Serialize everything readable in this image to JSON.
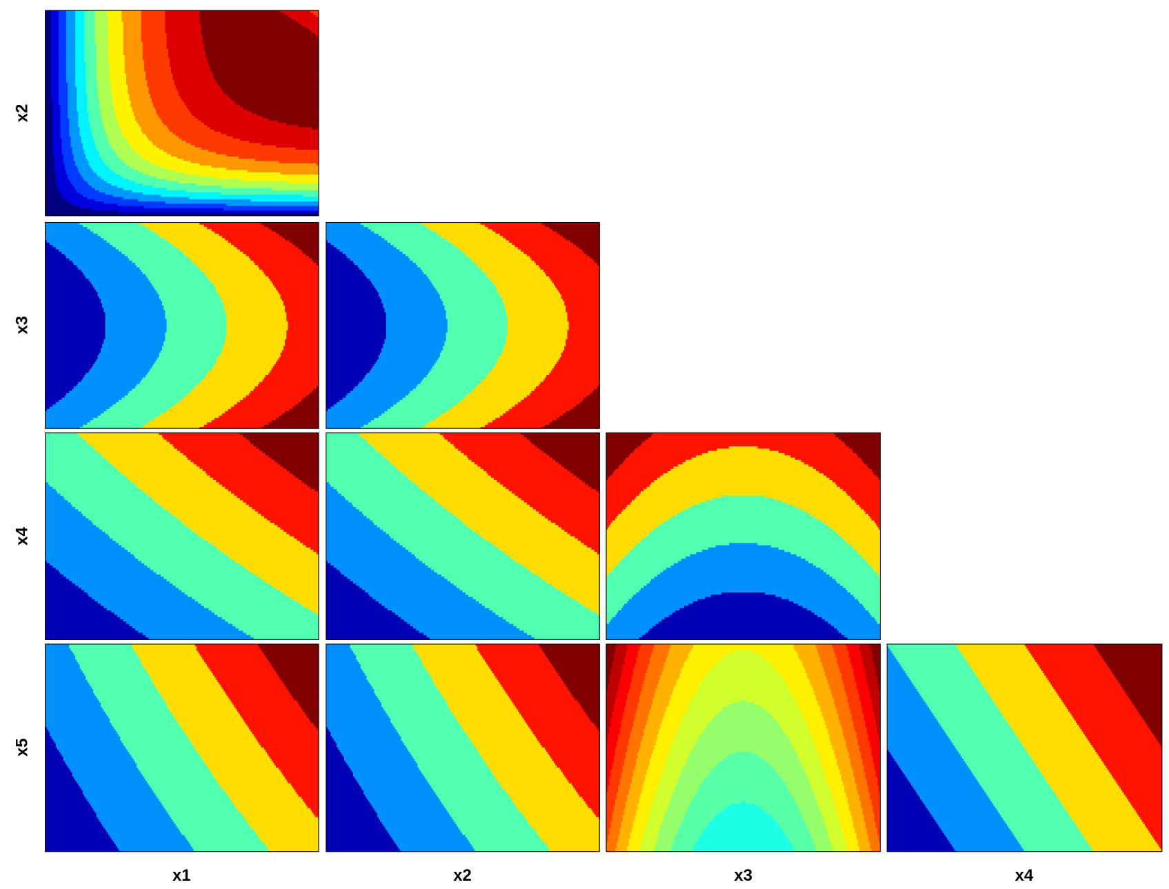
{
  "row_labels": [
    "x2",
    "x3",
    "x4",
    "x5"
  ],
  "column_labels": [
    "x1",
    "x2",
    "x3",
    "x4"
  ]
}
